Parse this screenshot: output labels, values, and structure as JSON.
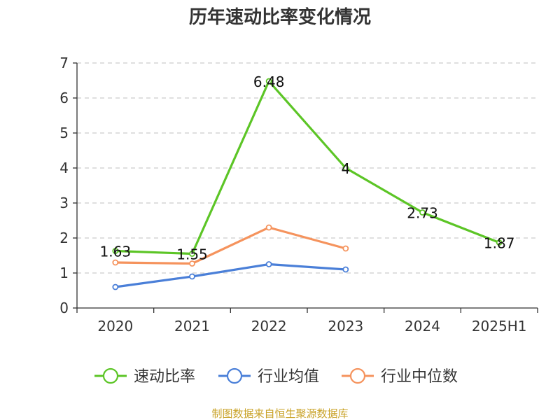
{
  "chart_data": {
    "type": "line",
    "title": "历年速动比率变化情况",
    "categories": [
      "2020",
      "2021",
      "2022",
      "2023",
      "2024",
      "2025H1"
    ],
    "ylim": [
      0,
      7
    ],
    "yticks": [
      "0",
      "1",
      "2",
      "3",
      "4",
      "5",
      "6",
      "7"
    ],
    "grid": true,
    "legend_position": "bottom",
    "series": [
      {
        "name": "速动比率",
        "color": "#5cc526",
        "values": [
          1.63,
          1.55,
          6.48,
          4,
          2.73,
          1.87
        ],
        "labels": [
          "1.63",
          "1.55",
          "6.48",
          "4",
          "2.73",
          "1.87"
        ]
      },
      {
        "name": "行业均值",
        "color": "#4a7fd8",
        "values": [
          0.6,
          0.9,
          1.25,
          1.1,
          null,
          null
        ]
      },
      {
        "name": "行业中位数",
        "color": "#f5935d",
        "values": [
          1.3,
          1.27,
          2.3,
          1.7,
          null,
          null
        ]
      }
    ],
    "source": "制图数据来自恒生聚源数据库"
  }
}
